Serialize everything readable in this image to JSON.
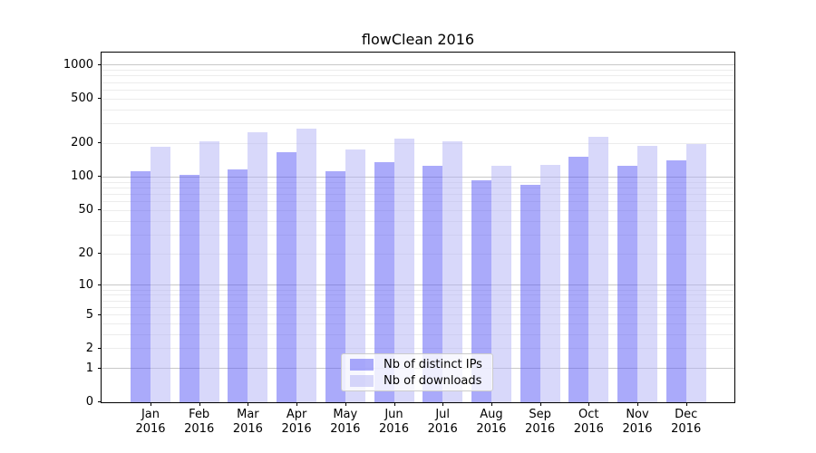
{
  "chart_data": {
    "type": "bar",
    "title": "flowClean 2016",
    "categories": [
      "Jan",
      "Feb",
      "Mar",
      "Apr",
      "May",
      "Jun",
      "Jul",
      "Aug",
      "Sep",
      "Oct",
      "Nov",
      "Dec"
    ],
    "category_year": "2016",
    "series": [
      {
        "name": "Nb of distinct IPs",
        "color": "#aaaaf9",
        "fill": "rgba(85,85,245,0.5)",
        "values": [
          112,
          103,
          117,
          165,
          111,
          134,
          124,
          93,
          84,
          151,
          126,
          140
        ]
      },
      {
        "name": "Nb of downloads",
        "color": "#d8d8fa",
        "fill": "rgba(177,177,245,0.5)",
        "values": [
          184,
          207,
          251,
          271,
          176,
          221,
          209,
          126,
          127,
          228,
          189,
          197
        ]
      }
    ],
    "y_axis": {
      "scale": "log(value+1)",
      "ticks": [
        1000,
        500,
        200,
        100,
        50,
        20,
        10,
        5,
        2,
        1,
        0
      ],
      "range": [
        0,
        1290
      ]
    },
    "grid": {
      "which": "both",
      "major_values": [
        1,
        10,
        100,
        1000
      ],
      "major_color": "#c8c8c8",
      "minor_color": "#ececec"
    },
    "legend": {
      "position": "lower center"
    },
    "text_color": "#000000",
    "background_color": "#ffffff"
  }
}
